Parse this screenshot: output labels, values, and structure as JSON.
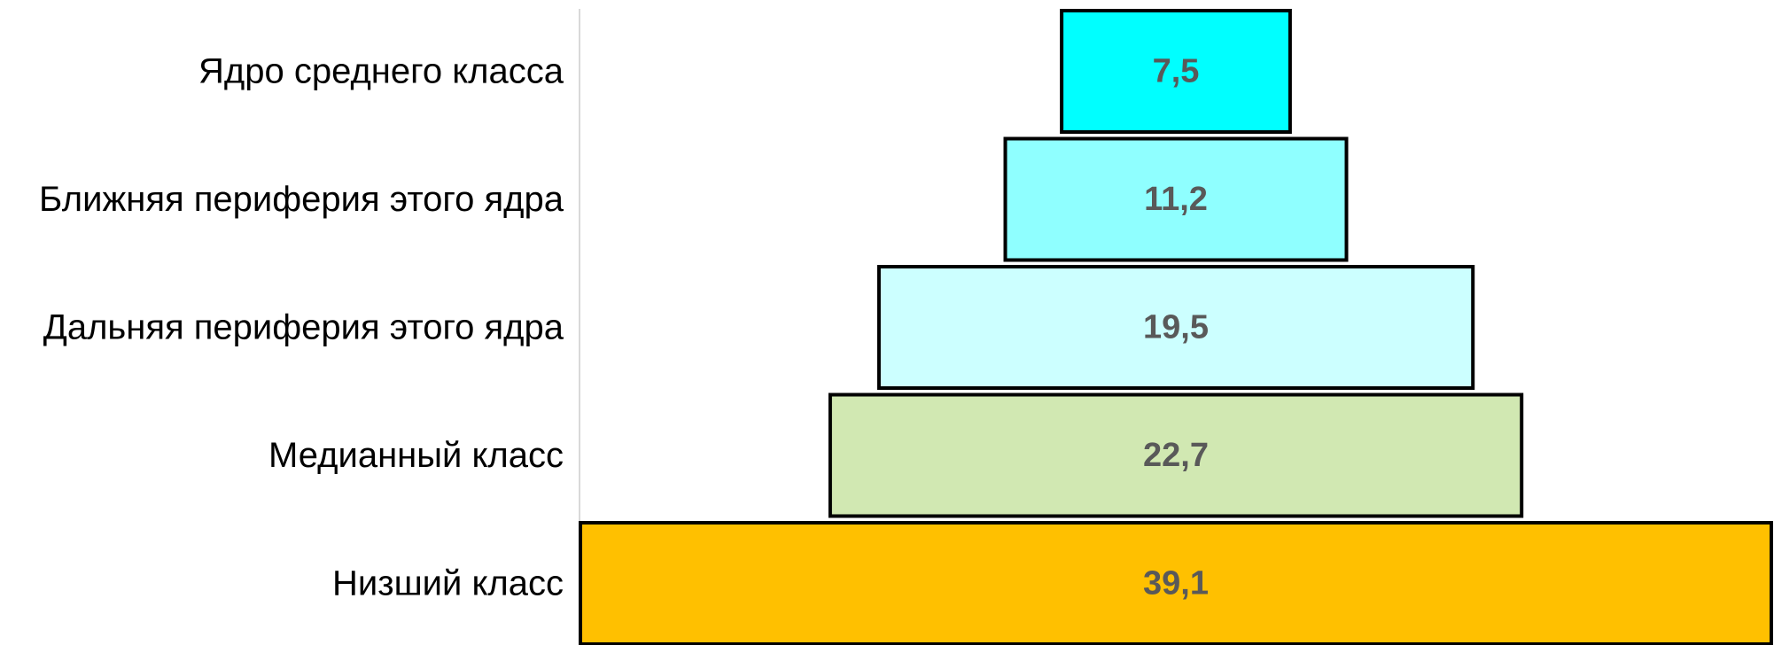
{
  "chart_data": {
    "type": "bar",
    "orientation": "horizontal",
    "layout": "centered-pyramid",
    "categories": [
      "Ядро среднего класса",
      "Ближняя периферия этого ядра",
      "Дальняя периферия этого ядра",
      "Медианный класс",
      "Низший класс"
    ],
    "values": [
      7.5,
      11.2,
      19.5,
      22.7,
      39.1
    ],
    "value_labels": [
      "7,5",
      "11,2",
      "19,5",
      "22,7",
      "39,1"
    ],
    "colors": [
      "#00FFFF",
      "#8FFFFF",
      "#CCFFFF",
      "#D1E8B2",
      "#FFC000"
    ],
    "xlim": [
      0,
      39.1
    ],
    "title": "",
    "xlabel": "",
    "ylabel": "",
    "grid": false,
    "legend": "none"
  }
}
